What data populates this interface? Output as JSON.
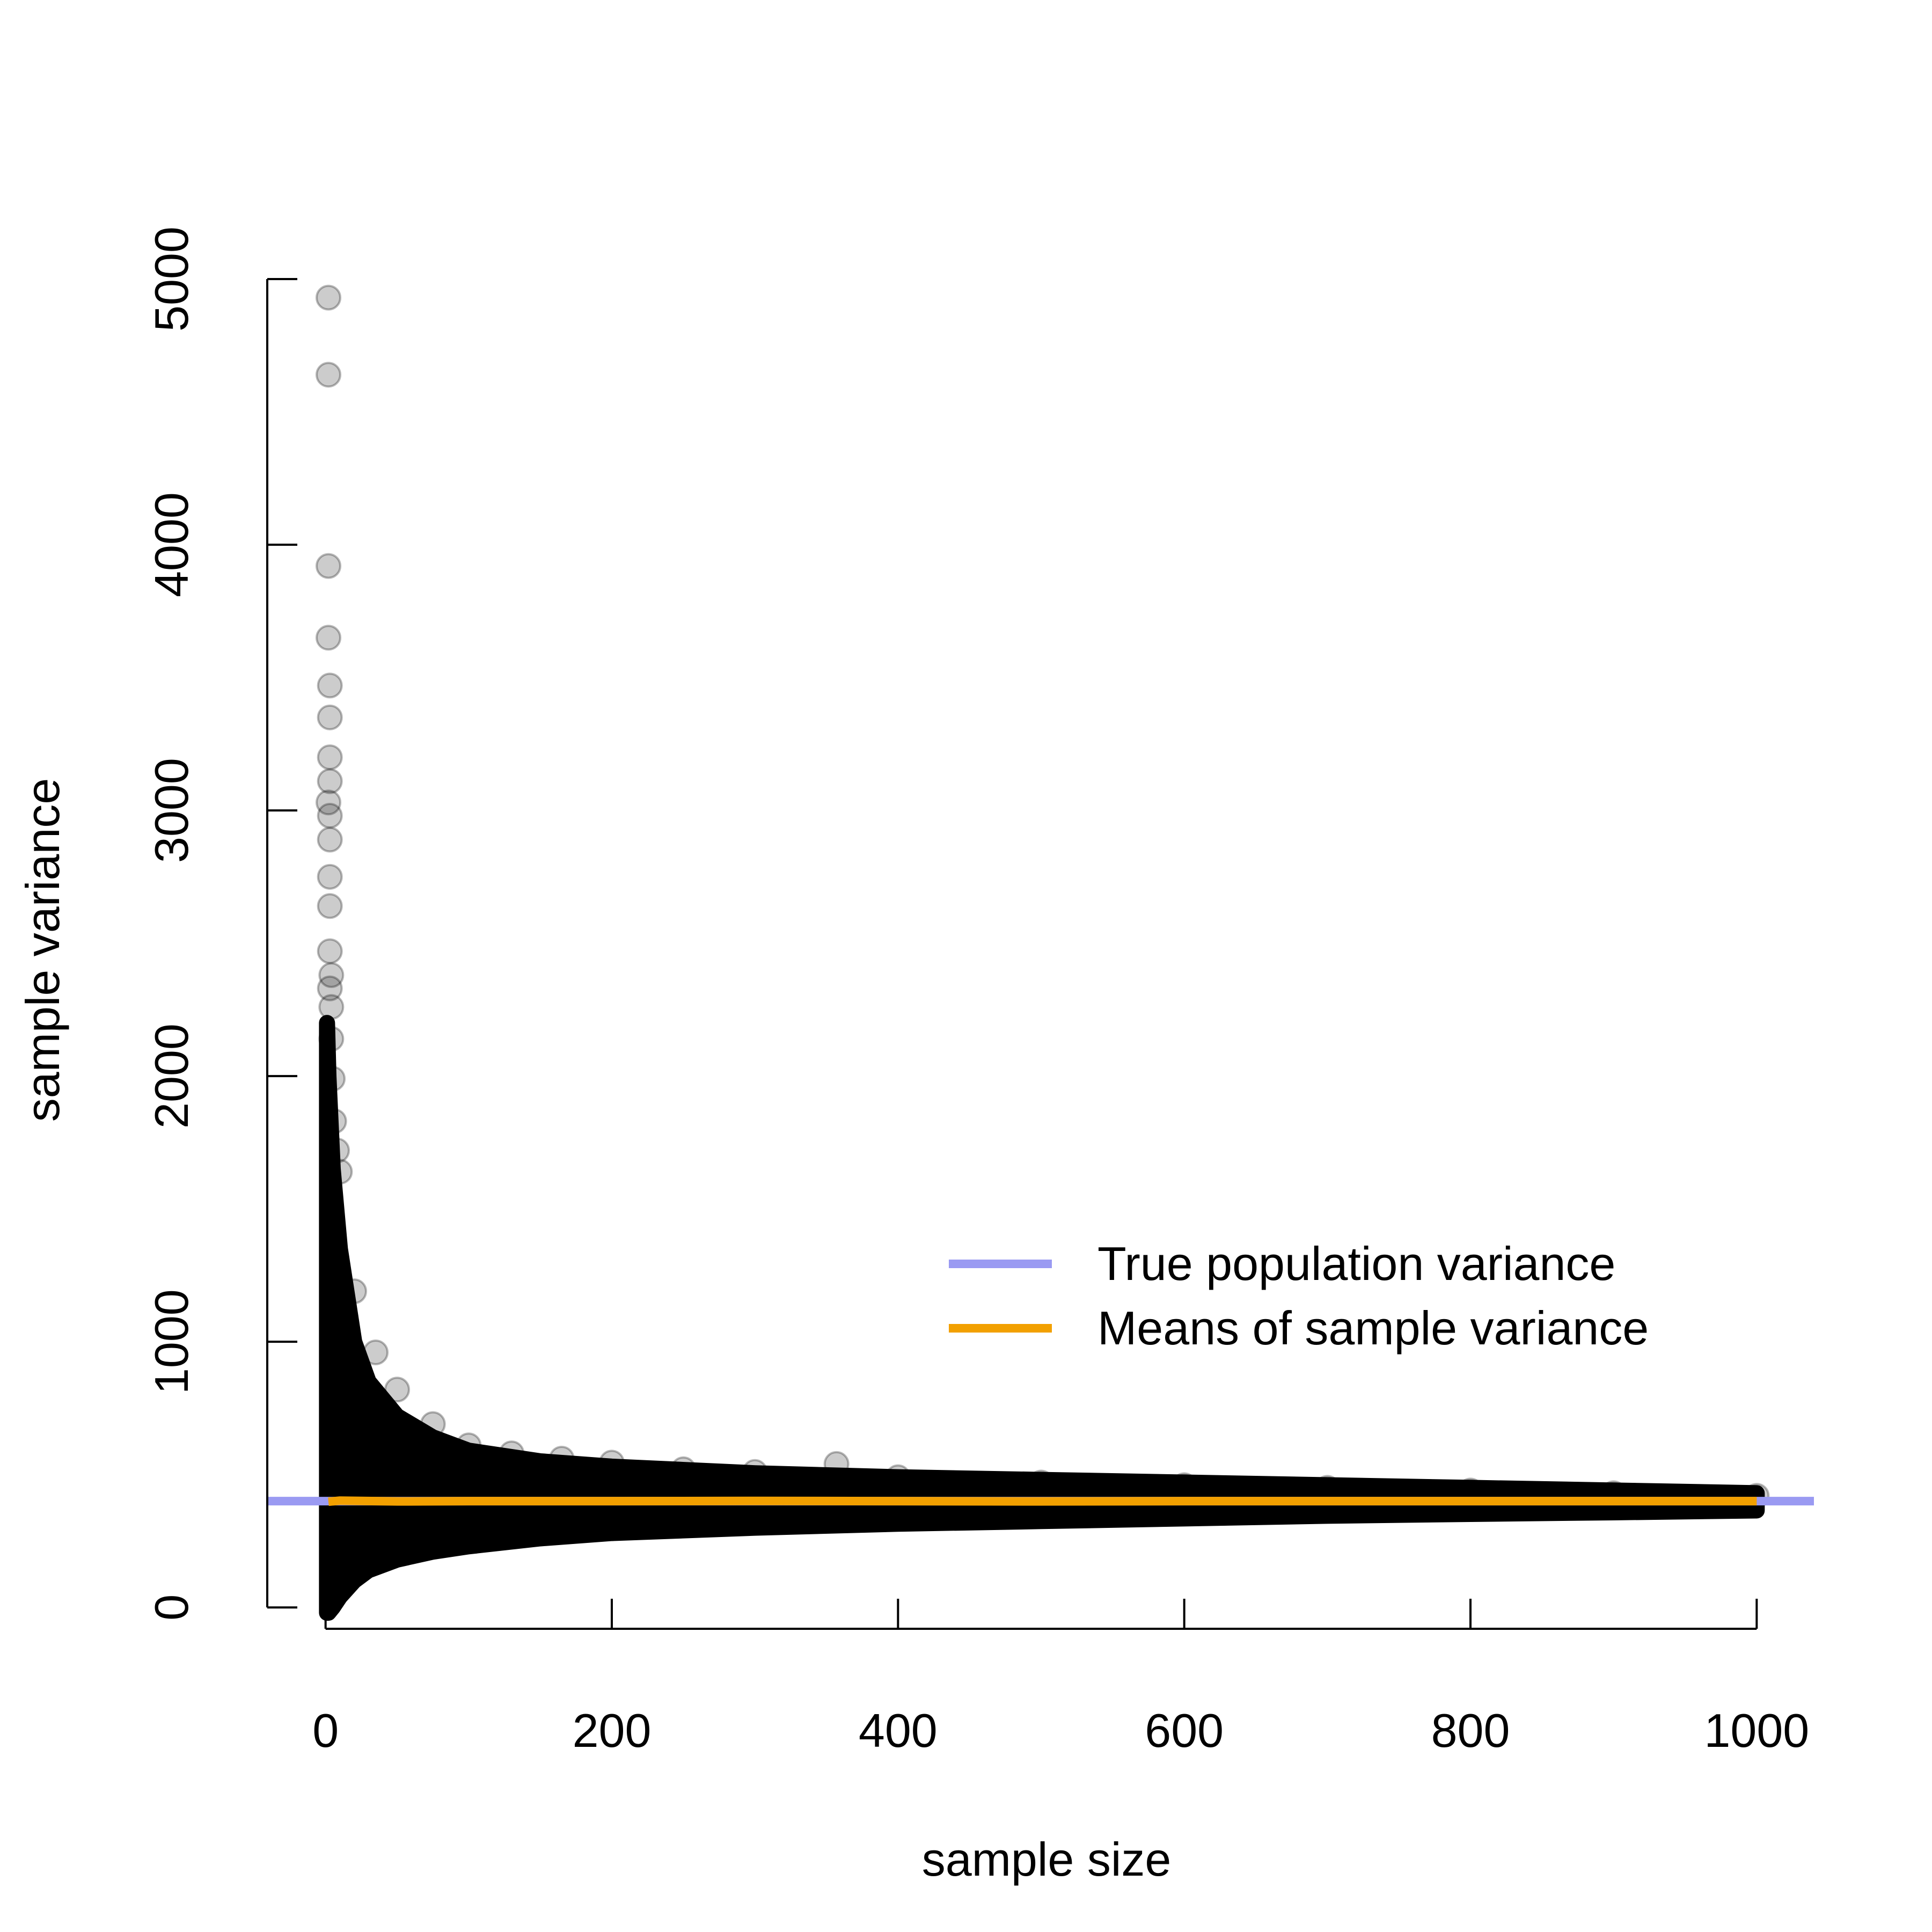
{
  "chart_data": {
    "type": "scatter",
    "title": "",
    "xlabel": "sample size",
    "ylabel": "sample variance",
    "xlim": [
      -40,
      1040
    ],
    "ylim": [
      -40,
      5000
    ],
    "xticks": [
      0,
      200,
      400,
      600,
      800,
      1000
    ],
    "yticks": [
      0,
      1000,
      2000,
      3000,
      4000,
      5000
    ],
    "grid": false,
    "legend_position": "right",
    "population_variance": 400,
    "max_sample_size": 1000,
    "colors": {
      "points": "#000000",
      "population_line": "#9a9af2",
      "mean_line": "#f2a000"
    },
    "series": [
      {
        "name": "True population variance",
        "kind": "hline",
        "y": 400
      },
      {
        "name": "Means of sample variance",
        "kind": "line",
        "x": [
          2,
          10,
          50,
          100,
          200,
          300,
          400,
          500,
          600,
          700,
          800,
          900,
          1000
        ],
        "y": [
          398,
          402,
          399,
          400,
          400,
          401,
          400,
          399,
          400,
          400,
          400,
          400,
          400
        ]
      },
      {
        "name": "",
        "kind": "points",
        "x": [
          2,
          2,
          2,
          2,
          3,
          3,
          3,
          3,
          2,
          3,
          3,
          3,
          3,
          3,
          4,
          3,
          4,
          4,
          5,
          6,
          8,
          10,
          20,
          35,
          50,
          75,
          100,
          130,
          165,
          200,
          250,
          300,
          357,
          400,
          500,
          600,
          700,
          800,
          900,
          1000
        ],
        "y": [
          4930,
          4640,
          3920,
          3650,
          3470,
          3350,
          3200,
          3110,
          3030,
          2980,
          2890,
          2750,
          2640,
          2470,
          2380,
          2330,
          2260,
          2140,
          1990,
          1830,
          1720,
          1640,
          1190,
          960,
          820,
          690,
          610,
          580,
          560,
          545,
          520,
          510,
          540,
          490,
          470,
          460,
          450,
          440,
          430,
          420
        ]
      }
    ],
    "envelope": {
      "x": [
        1,
        2,
        5,
        10,
        20,
        30,
        50,
        75,
        100,
        150,
        200,
        300,
        400,
        500,
        600,
        700,
        800,
        900,
        1000
      ],
      "upper": [
        2200,
        2000,
        1650,
        1350,
        1000,
        850,
        720,
        640,
        590,
        550,
        530,
        505,
        490,
        480,
        470,
        460,
        450,
        440,
        430
      ],
      "lower": [
        -20,
        -20,
        0,
        40,
        100,
        140,
        180,
        210,
        230,
        260,
        280,
        300,
        315,
        325,
        335,
        345,
        352,
        358,
        365
      ]
    },
    "legend": [
      {
        "label": "True population variance",
        "color": "#9a9af2"
      },
      {
        "label": "Means of sample variance",
        "color": "#f2a000"
      }
    ]
  }
}
